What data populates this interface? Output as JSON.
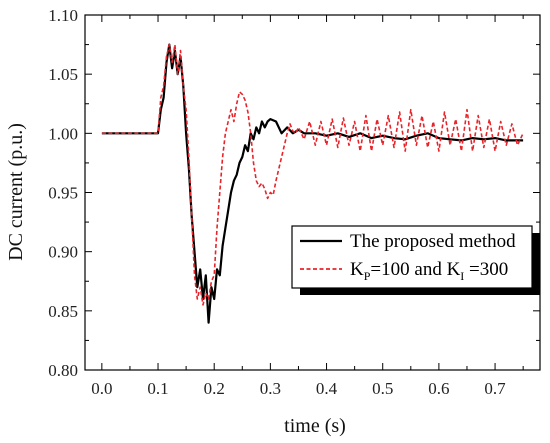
{
  "chart_data": {
    "type": "line",
    "title": "",
    "xlabel": "time (s)",
    "ylabel": "DC current (p.u.)",
    "xlim": [
      -0.03,
      0.78
    ],
    "ylim": [
      0.8,
      1.1
    ],
    "xticks": [
      "0.0",
      "0.1",
      "0.2",
      "0.3",
      "0.4",
      "0.5",
      "0.6",
      "0.7"
    ],
    "xtick_values": [
      0.0,
      0.1,
      0.2,
      0.3,
      0.4,
      0.5,
      0.6,
      0.7
    ],
    "yticks": [
      "0.80",
      "0.85",
      "0.90",
      "0.95",
      "1.00",
      "1.05",
      "1.10"
    ],
    "ytick_values": [
      0.8,
      0.85,
      0.9,
      0.95,
      1.0,
      1.05,
      1.1
    ],
    "grid": false,
    "legend_position": "lower-right",
    "series": [
      {
        "name": "The proposed method",
        "color": "#000000",
        "style": "solid",
        "x": [
          0.0,
          0.02,
          0.04,
          0.06,
          0.08,
          0.1,
          0.105,
          0.11,
          0.115,
          0.12,
          0.125,
          0.13,
          0.135,
          0.14,
          0.145,
          0.15,
          0.155,
          0.16,
          0.165,
          0.17,
          0.175,
          0.18,
          0.185,
          0.19,
          0.195,
          0.2,
          0.205,
          0.21,
          0.215,
          0.22,
          0.225,
          0.23,
          0.235,
          0.24,
          0.245,
          0.25,
          0.255,
          0.26,
          0.265,
          0.27,
          0.275,
          0.28,
          0.285,
          0.29,
          0.295,
          0.3,
          0.31,
          0.32,
          0.33,
          0.34,
          0.35,
          0.36,
          0.38,
          0.4,
          0.42,
          0.44,
          0.46,
          0.48,
          0.5,
          0.52,
          0.54,
          0.56,
          0.58,
          0.6,
          0.62,
          0.64,
          0.66,
          0.68,
          0.7,
          0.72,
          0.75
        ],
        "y": [
          1.0,
          1.0,
          1.0,
          1.0,
          1.0,
          1.0,
          1.02,
          1.03,
          1.06,
          1.075,
          1.055,
          1.07,
          1.05,
          1.065,
          1.04,
          1.0,
          0.97,
          0.93,
          0.9,
          0.87,
          0.885,
          0.86,
          0.88,
          0.84,
          0.87,
          0.86,
          0.885,
          0.88,
          0.905,
          0.92,
          0.935,
          0.95,
          0.96,
          0.965,
          0.975,
          0.98,
          0.99,
          0.985,
          1.0,
          0.995,
          1.005,
          1.0,
          1.01,
          1.005,
          1.01,
          1.012,
          1.01,
          1.0,
          1.005,
          1.0,
          1.003,
          1.0,
          1.0,
          0.998,
          1.0,
          0.997,
          1.0,
          0.996,
          0.998,
          0.996,
          0.995,
          0.998,
          1.0,
          0.996,
          0.995,
          0.994,
          0.996,
          0.995,
          0.996,
          0.994,
          0.994
        ]
      },
      {
        "name": "K_P=100 and K_I =300",
        "color": "#e8242a",
        "style": "dashed",
        "x": [
          0.0,
          0.02,
          0.04,
          0.06,
          0.08,
          0.1,
          0.105,
          0.11,
          0.115,
          0.12,
          0.125,
          0.13,
          0.135,
          0.14,
          0.145,
          0.15,
          0.155,
          0.16,
          0.165,
          0.17,
          0.175,
          0.18,
          0.185,
          0.19,
          0.195,
          0.2,
          0.205,
          0.21,
          0.215,
          0.22,
          0.225,
          0.23,
          0.235,
          0.24,
          0.245,
          0.25,
          0.255,
          0.26,
          0.265,
          0.27,
          0.275,
          0.28,
          0.285,
          0.29,
          0.295,
          0.3,
          0.305,
          0.31,
          0.315,
          0.32,
          0.325,
          0.33,
          0.335,
          0.34,
          0.345,
          0.35,
          0.36,
          0.37,
          0.38,
          0.39,
          0.4,
          0.41,
          0.42,
          0.43,
          0.44,
          0.45,
          0.46,
          0.47,
          0.48,
          0.49,
          0.5,
          0.51,
          0.52,
          0.53,
          0.54,
          0.55,
          0.56,
          0.57,
          0.58,
          0.59,
          0.6,
          0.61,
          0.62,
          0.63,
          0.64,
          0.65,
          0.66,
          0.67,
          0.68,
          0.69,
          0.7,
          0.71,
          0.72,
          0.73,
          0.74,
          0.75
        ],
        "y": [
          1.0,
          1.0,
          1.0,
          1.0,
          1.0,
          1.0,
          1.03,
          1.04,
          1.065,
          1.075,
          1.06,
          1.075,
          1.05,
          1.07,
          1.04,
          1.02,
          0.98,
          0.93,
          0.88,
          0.86,
          0.87,
          0.855,
          0.865,
          0.86,
          0.875,
          0.88,
          0.92,
          0.95,
          0.98,
          1.0,
          1.01,
          1.02,
          1.01,
          1.025,
          1.035,
          1.033,
          1.028,
          1.018,
          1.0,
          0.975,
          0.96,
          0.955,
          0.958,
          0.953,
          0.945,
          0.95,
          0.948,
          0.96,
          0.97,
          0.98,
          0.99,
          1.0,
          1.008,
          1.002,
          1.0,
          1.005,
          0.995,
          1.01,
          0.99,
          1.01,
          0.99,
          1.012,
          0.988,
          1.013,
          0.99,
          1.01,
          0.985,
          1.015,
          0.985,
          1.012,
          0.99,
          1.015,
          0.988,
          1.018,
          0.985,
          1.02,
          0.99,
          1.015,
          0.988,
          1.01,
          0.985,
          1.018,
          0.99,
          1.012,
          0.985,
          1.02,
          0.985,
          1.015,
          0.988,
          1.012,
          0.985,
          1.01,
          0.99,
          1.008,
          0.99,
          1.0
        ]
      }
    ],
    "legend": {
      "entries": [
        {
          "label": "The proposed method"
        },
        {
          "label_main": "K",
          "sub1": "P",
          "label_mid": "=100 and K",
          "sub2": "I",
          "label_end": " =300"
        }
      ]
    }
  }
}
